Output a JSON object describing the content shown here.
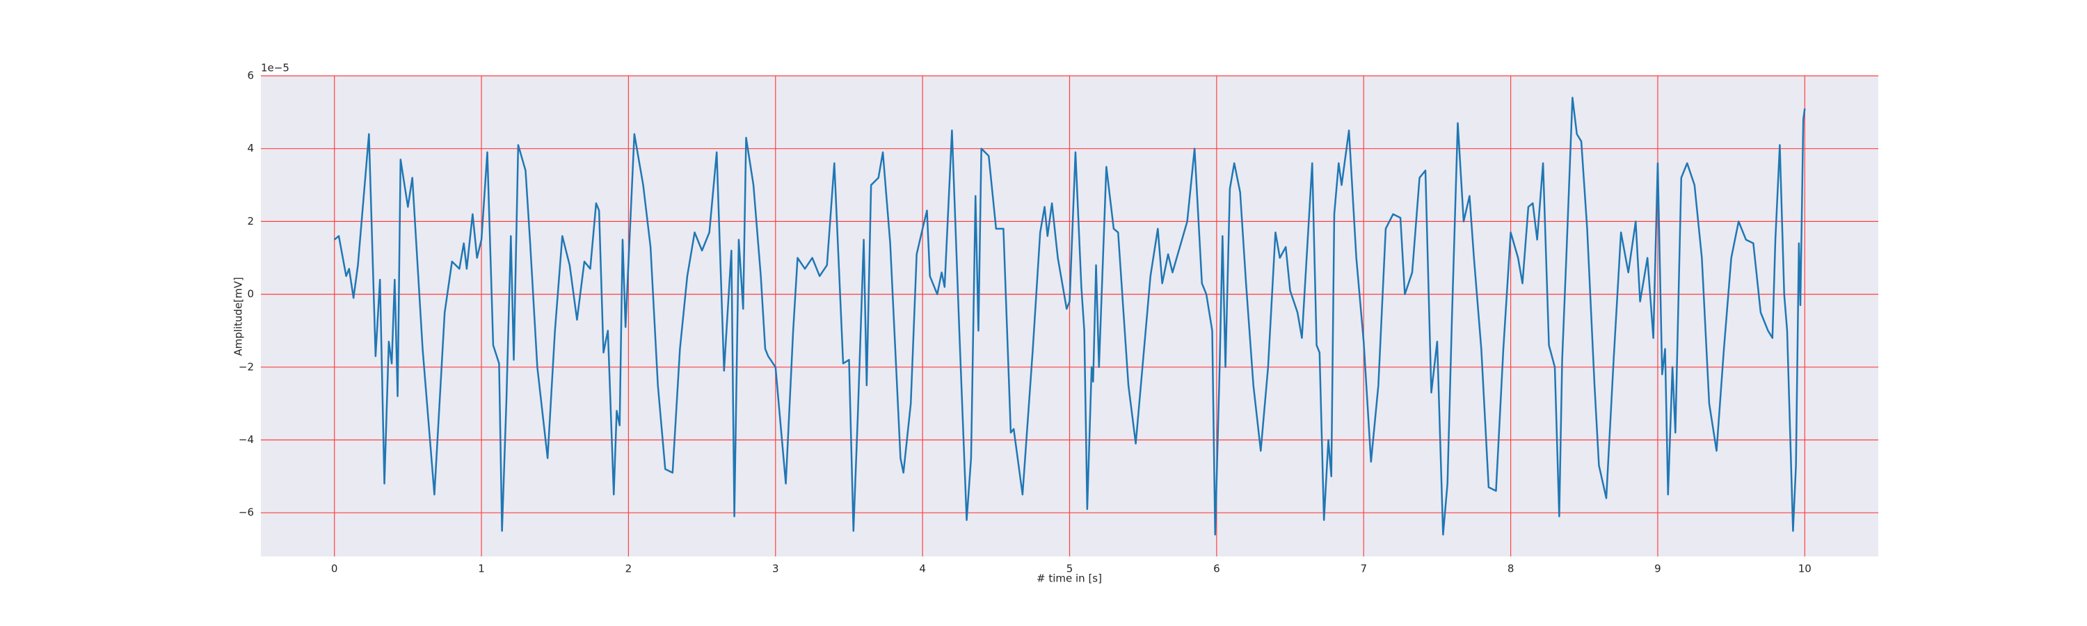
{
  "chart_data": {
    "type": "line",
    "x_label": "# time in [s]",
    "y_label": "Amplitude[mV]",
    "y_offset_text": "1e−5",
    "xlim": [
      -0.5,
      10.5
    ],
    "ylim": [
      -7.2,
      6.0
    ],
    "xticks": [
      0,
      1,
      2,
      3,
      4,
      5,
      6,
      7,
      8,
      9,
      10
    ],
    "yticks": [
      {
        "value": -6,
        "label": "−6"
      },
      {
        "value": -4,
        "label": "−4"
      },
      {
        "value": -2,
        "label": "−2"
      },
      0,
      2,
      4,
      6
    ],
    "grid": true,
    "grid_color": "#ff4040",
    "background": "#eaeaf2",
    "series": [
      {
        "color": "#1f77b4",
        "x": [
          0,
          0.03,
          0.08,
          0.1,
          0.13,
          0.16,
          0.235,
          0.28,
          0.31,
          0.34,
          0.37,
          0.39,
          0.41,
          0.43,
          0.45,
          0.5,
          0.53,
          0.6,
          0.68,
          0.75,
          0.8,
          0.85,
          0.88,
          0.9,
          0.94,
          0.97,
          1.0,
          1.04,
          1.08,
          1.12,
          1.14,
          1.17,
          1.2,
          1.22,
          1.25,
          1.3,
          1.33,
          1.38,
          1.45,
          1.5,
          1.55,
          1.6,
          1.65,
          1.7,
          1.74,
          1.78,
          1.8,
          1.83,
          1.86,
          1.9,
          1.92,
          1.94,
          1.96,
          1.98,
          2.04,
          2.1,
          2.15,
          2.2,
          2.25,
          2.3,
          2.35,
          2.4,
          2.45,
          2.5,
          2.55,
          2.6,
          2.65,
          2.7,
          2.72,
          2.75,
          2.78,
          2.8,
          2.85,
          2.9,
          2.93,
          2.95,
          3.0,
          3.07,
          3.12,
          3.15,
          3.2,
          3.25,
          3.3,
          3.35,
          3.4,
          3.46,
          3.5,
          3.53,
          3.56,
          3.6,
          3.62,
          3.65,
          3.7,
          3.73,
          3.78,
          3.85,
          3.87,
          3.92,
          3.96,
          4.0,
          4.03,
          4.05,
          4.1,
          4.13,
          4.15,
          4.2,
          4.25,
          4.3,
          4.33,
          4.36,
          4.38,
          4.4,
          4.45,
          4.5,
          4.55,
          4.6,
          4.62,
          4.68,
          4.75,
          4.8,
          4.83,
          4.85,
          4.88,
          4.92,
          4.98,
          5.0,
          5.04,
          5.08,
          5.1,
          5.12,
          5.15,
          5.16,
          5.18,
          5.2,
          5.25,
          5.3,
          5.33,
          5.4,
          5.45,
          5.55,
          5.6,
          5.63,
          5.67,
          5.7,
          5.8,
          5.85,
          5.9,
          5.93,
          5.97,
          5.99,
          6.02,
          6.04,
          6.06,
          6.09,
          6.12,
          6.16,
          6.2,
          6.25,
          6.3,
          6.35,
          6.4,
          6.43,
          6.47,
          6.5,
          6.55,
          6.58,
          6.65,
          6.68,
          6.7,
          6.73,
          6.76,
          6.78,
          6.8,
          6.83,
          6.85,
          6.9,
          6.95,
          7.0,
          7.05,
          7.1,
          7.15,
          7.2,
          7.25,
          7.28,
          7.33,
          7.38,
          7.42,
          7.46,
          7.5,
          7.54,
          7.57,
          7.6,
          7.64,
          7.68,
          7.72,
          7.75,
          7.8,
          7.85,
          7.9,
          7.95,
          8.0,
          8.05,
          8.08,
          8.12,
          8.15,
          8.18,
          8.22,
          8.26,
          8.3,
          8.33,
          8.35,
          8.38,
          8.42,
          8.45,
          8.48,
          8.52,
          8.57,
          8.6,
          8.65,
          8.7,
          8.75,
          8.8,
          8.85,
          8.88,
          8.93,
          8.97,
          9.0,
          9.03,
          9.05,
          9.07,
          9.1,
          9.12,
          9.16,
          9.2,
          9.25,
          9.3,
          9.35,
          9.4,
          9.45,
          9.5,
          9.55,
          9.6,
          9.65,
          9.7,
          9.75,
          9.78,
          9.8,
          9.83,
          9.86,
          9.88,
          9.92,
          9.94,
          9.96,
          9.97,
          9.99,
          10.0
        ],
        "values": [
          1.5,
          1.6,
          0.5,
          0.7,
          -0.1,
          0.8,
          4.4,
          -1.7,
          0.4,
          -5.2,
          -1.3,
          -1.9,
          0.4,
          -2.8,
          3.7,
          2.4,
          3.2,
          -1.5,
          -5.5,
          -0.5,
          0.9,
          0.7,
          1.4,
          0.7,
          2.2,
          1.0,
          1.5,
          3.9,
          -1.4,
          -1.9,
          -6.5,
          -2.9,
          1.6,
          -1.8,
          4.1,
          3.4,
          1.5,
          -2.0,
          -4.5,
          -1.0,
          1.6,
          0.8,
          -0.7,
          0.9,
          0.7,
          2.5,
          2.3,
          -1.6,
          -1.0,
          -5.5,
          -3.2,
          -3.6,
          1.5,
          -0.9,
          4.4,
          3.0,
          1.3,
          -2.5,
          -4.8,
          -4.9,
          -1.5,
          0.5,
          1.7,
          1.2,
          1.7,
          3.9,
          -2.1,
          1.2,
          -6.1,
          1.5,
          -0.4,
          4.3,
          3.0,
          0.5,
          -1.5,
          -1.7,
          -2.0,
          -5.2,
          -1.0,
          1.0,
          0.7,
          1.0,
          0.5,
          0.8,
          3.6,
          -1.9,
          -1.8,
          -6.5,
          -3.3,
          1.5,
          -2.5,
          3.0,
          3.2,
          3.9,
          1.4,
          -4.5,
          -4.9,
          -3.0,
          1.1,
          1.8,
          2.3,
          0.5,
          0.0,
          0.6,
          0.2,
          4.5,
          -1.0,
          -6.2,
          -4.5,
          2.7,
          -1.0,
          4.0,
          3.8,
          1.8,
          1.8,
          -3.8,
          -3.7,
          -5.5,
          -1.5,
          1.7,
          2.4,
          1.6,
          2.5,
          1.0,
          -0.4,
          -0.2,
          3.9,
          0.2,
          -1.0,
          -5.9,
          -2.0,
          -2.4,
          0.8,
          -2.0,
          3.5,
          1.8,
          1.7,
          -2.5,
          -4.1,
          0.5,
          1.8,
          0.3,
          1.1,
          0.6,
          2.0,
          4.0,
          0.3,
          0,
          -1.0,
          -6.6,
          -2.1,
          1.6,
          -2.0,
          2.9,
          3.6,
          2.8,
          0.3,
          -2.5,
          -4.3,
          -2.0,
          1.7,
          1.0,
          1.3,
          0.1,
          -0.5,
          -1.2,
          3.6,
          -1.4,
          -1.6,
          -6.2,
          -4.0,
          -5.0,
          2.2,
          3.6,
          3.0,
          4.5,
          1.0,
          -1.3,
          -4.6,
          -2.5,
          1.8,
          2.2,
          2.1,
          0.0,
          0.6,
          3.2,
          3.4,
          -2.7,
          -1.3,
          -6.6,
          -5.2,
          -0.7,
          4.7,
          2.0,
          2.7,
          1.0,
          -1.5,
          -5.3,
          -5.4,
          -1.5,
          1.7,
          1.0,
          0.3,
          2.4,
          2.5,
          1.5,
          3.6,
          -1.4,
          -2.0,
          -6.1,
          -1.8,
          1.2,
          5.4,
          4.4,
          4.2,
          1.8,
          -2.5,
          -4.7,
          -5.6,
          -1.8,
          1.7,
          0.6,
          2.0,
          -0.2,
          1.0,
          -1.2,
          3.6,
          -2.2,
          -1.5,
          -5.5,
          -2.0,
          -3.8,
          3.2,
          3.6,
          3.0,
          1.0,
          -3.0,
          -4.3,
          -1.5,
          1.0,
          2.0,
          1.5,
          1.4,
          -0.5,
          -1.0,
          -1.2,
          1.5,
          4.1,
          0.0,
          -1.0,
          -6.5,
          -4.7,
          1.4,
          -0.3,
          4.8,
          5.1
        ]
      }
    ]
  }
}
